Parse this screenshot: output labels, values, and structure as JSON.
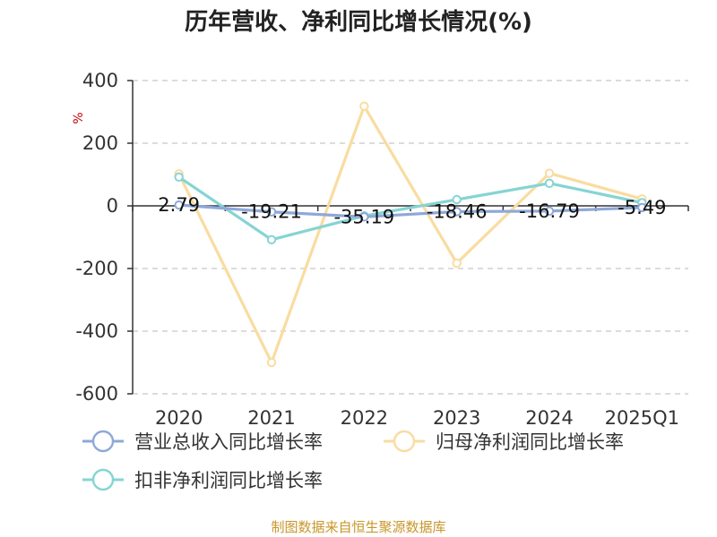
{
  "title": "历年营收、净利同比增长情况(%)",
  "source": "制图数据来自恒生聚源数据库",
  "chart_data": {
    "type": "line",
    "title": "历年营收、净利同比增长情况(%)",
    "ylabel": "%",
    "ylim": [
      -600,
      400
    ],
    "yticks": [
      400,
      200,
      0,
      -200,
      -400,
      -600
    ],
    "categories": [
      "2020",
      "2021",
      "2022",
      "2023",
      "2024",
      "2025Q1"
    ],
    "grid": true,
    "legend_position": "bottom-left",
    "series": [
      {
        "name": "营业总收入同比增长率",
        "color": "#8fa8d8",
        "values": [
          2.79,
          -19.21,
          -35.19,
          -18.46,
          -16.79,
          -5.49
        ],
        "labels": [
          "2.79",
          "-19.21",
          "-35.19",
          "-18.46",
          "-16.79",
          "-5.49"
        ]
      },
      {
        "name": "归母净利润同比增长率",
        "color": "#f9dca0",
        "values": [
          102,
          -500,
          318,
          -183,
          104,
          22
        ]
      },
      {
        "name": "扣非净利润同比增长率",
        "color": "#86d4d4",
        "values": [
          92,
          -108,
          -32,
          20,
          72,
          10
        ]
      }
    ]
  }
}
